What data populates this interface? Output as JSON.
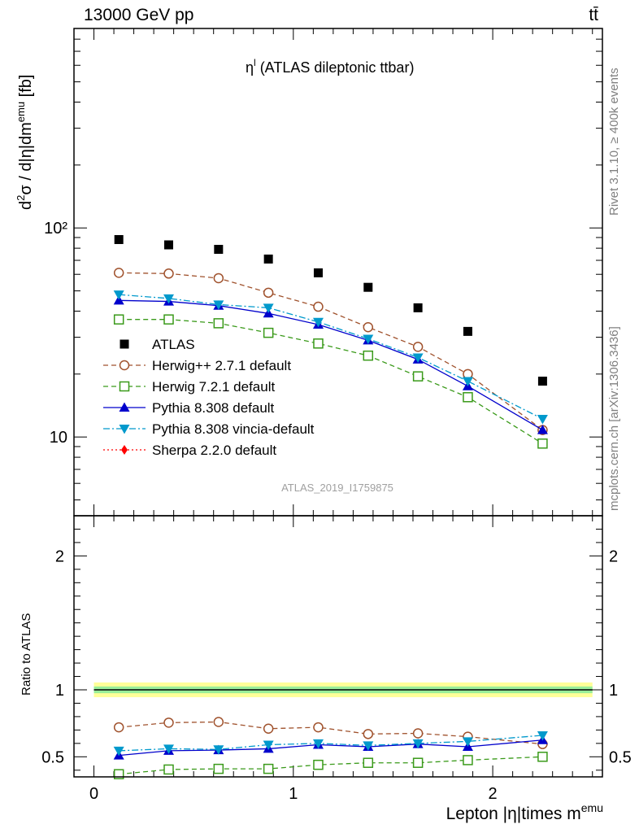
{
  "header": {
    "left": "13000 GeV pp",
    "right": "tt̄"
  },
  "side_text": {
    "rivet": "Rivet 3.1.10, ≥ 400k events",
    "mcplots": "mcplots.cern.ch [arXiv:1306.3436]"
  },
  "watermark": "ATLAS_2019_I1759875",
  "chart_data": [
    {
      "type": "scatter",
      "title": "ηl (ATLAS dileptonic ttbar)",
      "title_main": "η",
      "title_sup": "l",
      "title_rest": " (ATLAS dileptonic ttbar)",
      "ylabel": "d²σ / d|η|dm^emu [fb]",
      "ylabel_parts": {
        "a": "d",
        "a_sup": "2",
        "b": "σ / d|η|dm",
        "b_sup": "emu",
        "c": " [fb]"
      },
      "yscale": "log",
      "ylim": [
        4.2,
        900
      ],
      "xlim": [
        -0.1,
        2.55
      ],
      "y_tick_labels": {
        "100": "10²",
        "10": "10"
      },
      "x": [
        0.125,
        0.375,
        0.625,
        0.875,
        1.125,
        1.375,
        1.625,
        1.875,
        2.25
      ],
      "legend_position": "lower-left",
      "series": [
        {
          "name": "ATLAS",
          "color": "#000000",
          "marker": "square-filled",
          "line": "none",
          "values": [
            88,
            83,
            79,
            71,
            61,
            52,
            41.5,
            32,
            18.5
          ]
        },
        {
          "name": "Herwig++ 2.7.1 default",
          "color": "#a0522d",
          "marker": "circle-open",
          "line": "dashed",
          "values": [
            61,
            60.5,
            57.5,
            49,
            42,
            33.5,
            27,
            20,
            10.8
          ]
        },
        {
          "name": "Herwig 7.2.1 default",
          "color": "#3a9a1a",
          "marker": "square-open",
          "line": "dashed",
          "values": [
            36.5,
            36.5,
            35,
            31.5,
            28,
            24.5,
            19.5,
            15.5,
            9.3
          ]
        },
        {
          "name": "Pythia 8.308 default",
          "color": "#0000cc",
          "marker": "triangle-up",
          "line": "solid",
          "values": [
            45,
            44.5,
            42.5,
            39,
            34.5,
            29,
            23.5,
            17.5,
            10.8
          ]
        },
        {
          "name": "Pythia 8.308 vincia-default",
          "color": "#0099cc",
          "marker": "triangle-down",
          "line": "dashdot",
          "values": [
            48,
            46,
            43,
            41.5,
            35.5,
            29.5,
            24,
            18.5,
            12.2
          ]
        },
        {
          "name": "Sherpa 2.2.0 default",
          "color": "#ff0000",
          "marker": "diamond",
          "line": "dotted",
          "values": []
        }
      ]
    },
    {
      "type": "line",
      "ylabel": "Ratio to ATLAS",
      "xlabel": "Lepton |η|times m^emu",
      "xlabel_main": "Lepton |η|times m",
      "xlabel_sup": "emu",
      "ylim": [
        0.35,
        2.3
      ],
      "xlim": [
        -0.1,
        2.55
      ],
      "y_ticks": [
        0.5,
        1,
        2
      ],
      "x_ticks": [
        0,
        1,
        2
      ],
      "x": [
        0.125,
        0.375,
        0.625,
        0.875,
        1.125,
        1.375,
        1.625,
        1.875,
        2.25
      ],
      "band": {
        "inner": 0.025,
        "outer": 0.055
      },
      "series": [
        {
          "name": "Herwig++ 2.7.1 default",
          "color": "#a0522d",
          "marker": "circle-open",
          "line": "dashed",
          "values": [
            0.72,
            0.755,
            0.76,
            0.71,
            0.72,
            0.67,
            0.675,
            0.65,
            0.595
          ]
        },
        {
          "name": "Herwig 7.2.1 default",
          "color": "#3a9a1a",
          "marker": "square-open",
          "line": "dashed",
          "values": [
            0.37,
            0.405,
            0.41,
            0.41,
            0.44,
            0.455,
            0.455,
            0.475,
            0.5
          ]
        },
        {
          "name": "Pythia 8.308 default",
          "color": "#0000cc",
          "marker": "triangle-up",
          "line": "solid",
          "values": [
            0.51,
            0.545,
            0.55,
            0.56,
            0.59,
            0.575,
            0.595,
            0.575,
            0.625
          ]
        },
        {
          "name": "Pythia 8.308 vincia-default",
          "color": "#0099cc",
          "marker": "triangle-down",
          "line": "dashdot",
          "values": [
            0.545,
            0.56,
            0.555,
            0.59,
            0.6,
            0.585,
            0.6,
            0.615,
            0.66
          ]
        }
      ]
    }
  ]
}
